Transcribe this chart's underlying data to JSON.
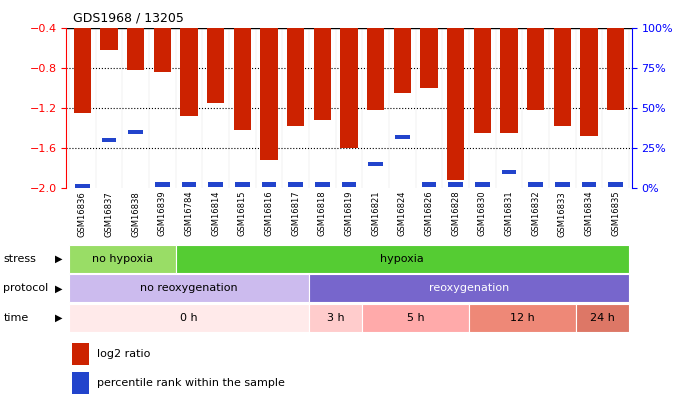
{
  "title": "GDS1968 / 13205",
  "samples": [
    "GSM16836",
    "GSM16837",
    "GSM16838",
    "GSM16839",
    "GSM16784",
    "GSM16814",
    "GSM16815",
    "GSM16816",
    "GSM16817",
    "GSM16818",
    "GSM16819",
    "GSM16821",
    "GSM16824",
    "GSM16826",
    "GSM16828",
    "GSM16830",
    "GSM16831",
    "GSM16832",
    "GSM16833",
    "GSM16834",
    "GSM16835"
  ],
  "log2_ratios": [
    -1.25,
    -0.62,
    -0.82,
    -0.84,
    -1.28,
    -1.15,
    -1.42,
    -1.72,
    -1.38,
    -1.32,
    -1.6,
    -1.22,
    -1.05,
    -1.0,
    -1.92,
    -1.45,
    -1.45,
    -1.22,
    -1.38,
    -1.48,
    -1.22
  ],
  "percentile_ranks": [
    1,
    30,
    35,
    2,
    2,
    2,
    2,
    2,
    2,
    2,
    2,
    15,
    32,
    2,
    2,
    2,
    10,
    2,
    2,
    2,
    2
  ],
  "ylim_left": [
    -2.0,
    -0.4
  ],
  "ylim_right": [
    0,
    100
  ],
  "yticks_left": [
    -2.0,
    -1.6,
    -1.2,
    -0.8,
    -0.4
  ],
  "yticks_right": [
    0,
    25,
    50,
    75,
    100
  ],
  "ytick_labels_right": [
    "0%",
    "25%",
    "50%",
    "75%",
    "100%"
  ],
  "bar_color": "#cc2200",
  "percentile_color": "#2244cc",
  "stress_no_hypoxia_samples": 4,
  "stress_hypoxia_samples": 17,
  "protocol_no_reox_samples": 9,
  "time_0h_samples": 9,
  "time_3h_samples": 2,
  "time_5h_samples": 4,
  "time_12h_samples": 4,
  "time_24h_samples": 2,
  "stress_no_hypoxia_color": "#99dd66",
  "stress_hypoxia_color": "#55cc33",
  "protocol_no_reox_color": "#ccbbee",
  "protocol_reox_color": "#7766cc",
  "time_0h_color": "#ffeaea",
  "time_3h_color": "#ffcccc",
  "time_5h_color": "#ffaaaa",
  "time_12h_color": "#ee8877",
  "time_24h_color": "#dd7766",
  "xtick_bg_color": "#dddddd",
  "left_label_color": "#555555"
}
